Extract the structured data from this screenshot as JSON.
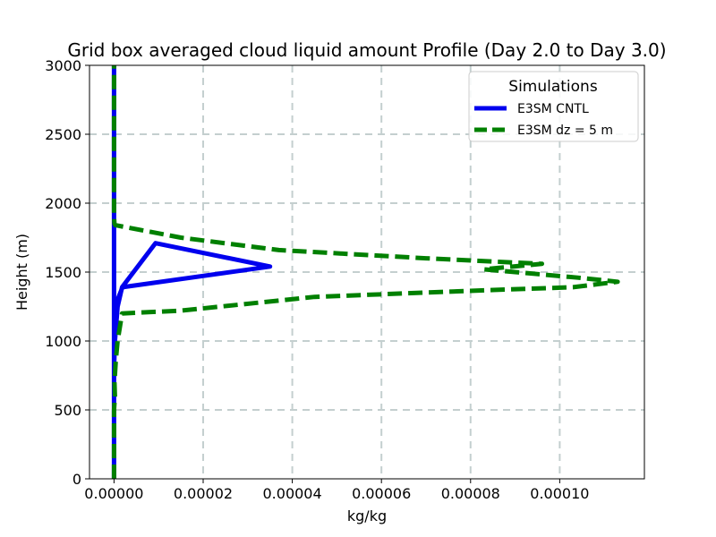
{
  "chart_data": {
    "type": "line",
    "title": "Grid box averaged cloud liquid amount Profile (Day 2.0 to Day 3.0)",
    "xlabel": "kg/kg",
    "ylabel": "Height (m)",
    "xlim": [
      -5.5e-06,
      0.000119
    ],
    "ylim": [
      0,
      3000
    ],
    "xticks": [
      0,
      2e-05,
      4e-05,
      6e-05,
      8e-05,
      0.0001
    ],
    "xtick_labels": [
      "0.00000",
      "0.00002",
      "0.00004",
      "0.00006",
      "0.00008",
      "0.00010"
    ],
    "yticks": [
      0,
      500,
      1000,
      1500,
      2000,
      2500,
      3000
    ],
    "ytick_labels": [
      "0",
      "500",
      "1000",
      "1500",
      "2000",
      "2500",
      "3000"
    ],
    "grid": true,
    "legend": {
      "title": "Simulations",
      "placement": "top-right"
    },
    "series": [
      {
        "name": "E3SM CNTL",
        "color": "#0000ee",
        "style": "solid",
        "x": [
          0,
          0,
          0,
          2e-07,
          8e-07,
          1.8e-06,
          9.3e-06,
          3.5e-05,
          1.9e-06,
          8e-07,
          4e-07,
          2e-07,
          0,
          0,
          0,
          0
        ],
        "y": [
          0,
          500,
          800,
          1000,
          1250,
          1390,
          1710,
          1540,
          1390,
          1300,
          1100,
          1000,
          800,
          2200,
          2500,
          3000
        ]
      },
      {
        "name": "E3SM dz = 5 m",
        "color": "#008000",
        "style": "dashed",
        "x": [
          0,
          0,
          2e-07,
          1e-07,
          4e-07,
          8e-07,
          1.2e-06,
          1.8e-06,
          1.5e-05,
          4.5e-05,
          8.5e-05,
          0.000103,
          0.000113,
          0.000104,
          9.7e-05,
          9e-05,
          8.3e-05,
          9.6e-05,
          7e-05,
          3.7e-05,
          1.5e-05,
          3e-07,
          1e-07,
          0,
          0,
          0
        ],
        "y": [
          0,
          500,
          600,
          700,
          860,
          1000,
          1080,
          1200,
          1220,
          1320,
          1370,
          1390,
          1430,
          1460,
          1480,
          1500,
          1520,
          1560,
          1600,
          1660,
          1750,
          1840,
          1850,
          1900,
          2200,
          3000
        ]
      }
    ]
  }
}
